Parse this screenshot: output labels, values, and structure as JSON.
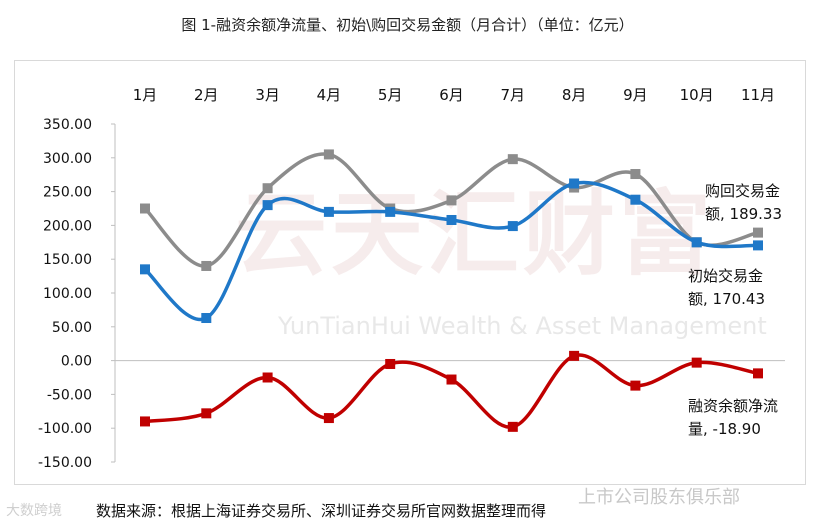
{
  "title": "图 1-融资余额净流量、初始\\购回交易金额（月合计）（单位：亿元）",
  "source_note": "数据来源：根据上海证券交易所、深圳证券交易所官网数据整理而得",
  "watermarks": {
    "center_cn": "云天汇财富",
    "center_en": "YunTianHui Wealth & Asset Management",
    "bottom_left": "大数跨境",
    "bottom_right": "上市公司股东俱乐部"
  },
  "annotations": {
    "buyback": {
      "line1": "购回交易金",
      "line2": "额, 189.33"
    },
    "initial": {
      "line1": "初始交易金",
      "line2": "额, 170.43"
    },
    "netflow": {
      "line1": "融资余额净流",
      "line2": "量, -18.90"
    }
  },
  "chart_data": {
    "type": "line",
    "categories": [
      "1月",
      "2月",
      "3月",
      "4月",
      "5月",
      "6月",
      "7月",
      "8月",
      "9月",
      "10月",
      "11月"
    ],
    "ylim": [
      -150,
      350
    ],
    "yticks": [
      "350.00",
      "300.00",
      "250.00",
      "200.00",
      "150.00",
      "100.00",
      "50.00",
      "0.00",
      "-50.00",
      "-100.00",
      "-150.00"
    ],
    "grid": false,
    "series": [
      {
        "name": "购回交易金额",
        "color": "#8c8c8c",
        "marker": "square",
        "values": [
          225,
          140,
          255,
          305,
          225,
          237,
          298,
          256,
          276,
          175,
          189.33
        ]
      },
      {
        "name": "初始交易金额",
        "color": "#1f78c8",
        "marker": "square",
        "values": [
          135,
          63,
          230,
          220,
          220,
          208,
          199,
          262,
          238,
          175,
          170.43
        ]
      },
      {
        "name": "融资余额净流量",
        "color": "#c00000",
        "marker": "square",
        "values": [
          -90,
          -78,
          -25,
          -85,
          -5,
          -28,
          -98,
          7,
          -37,
          -3,
          -18.9
        ]
      }
    ]
  }
}
